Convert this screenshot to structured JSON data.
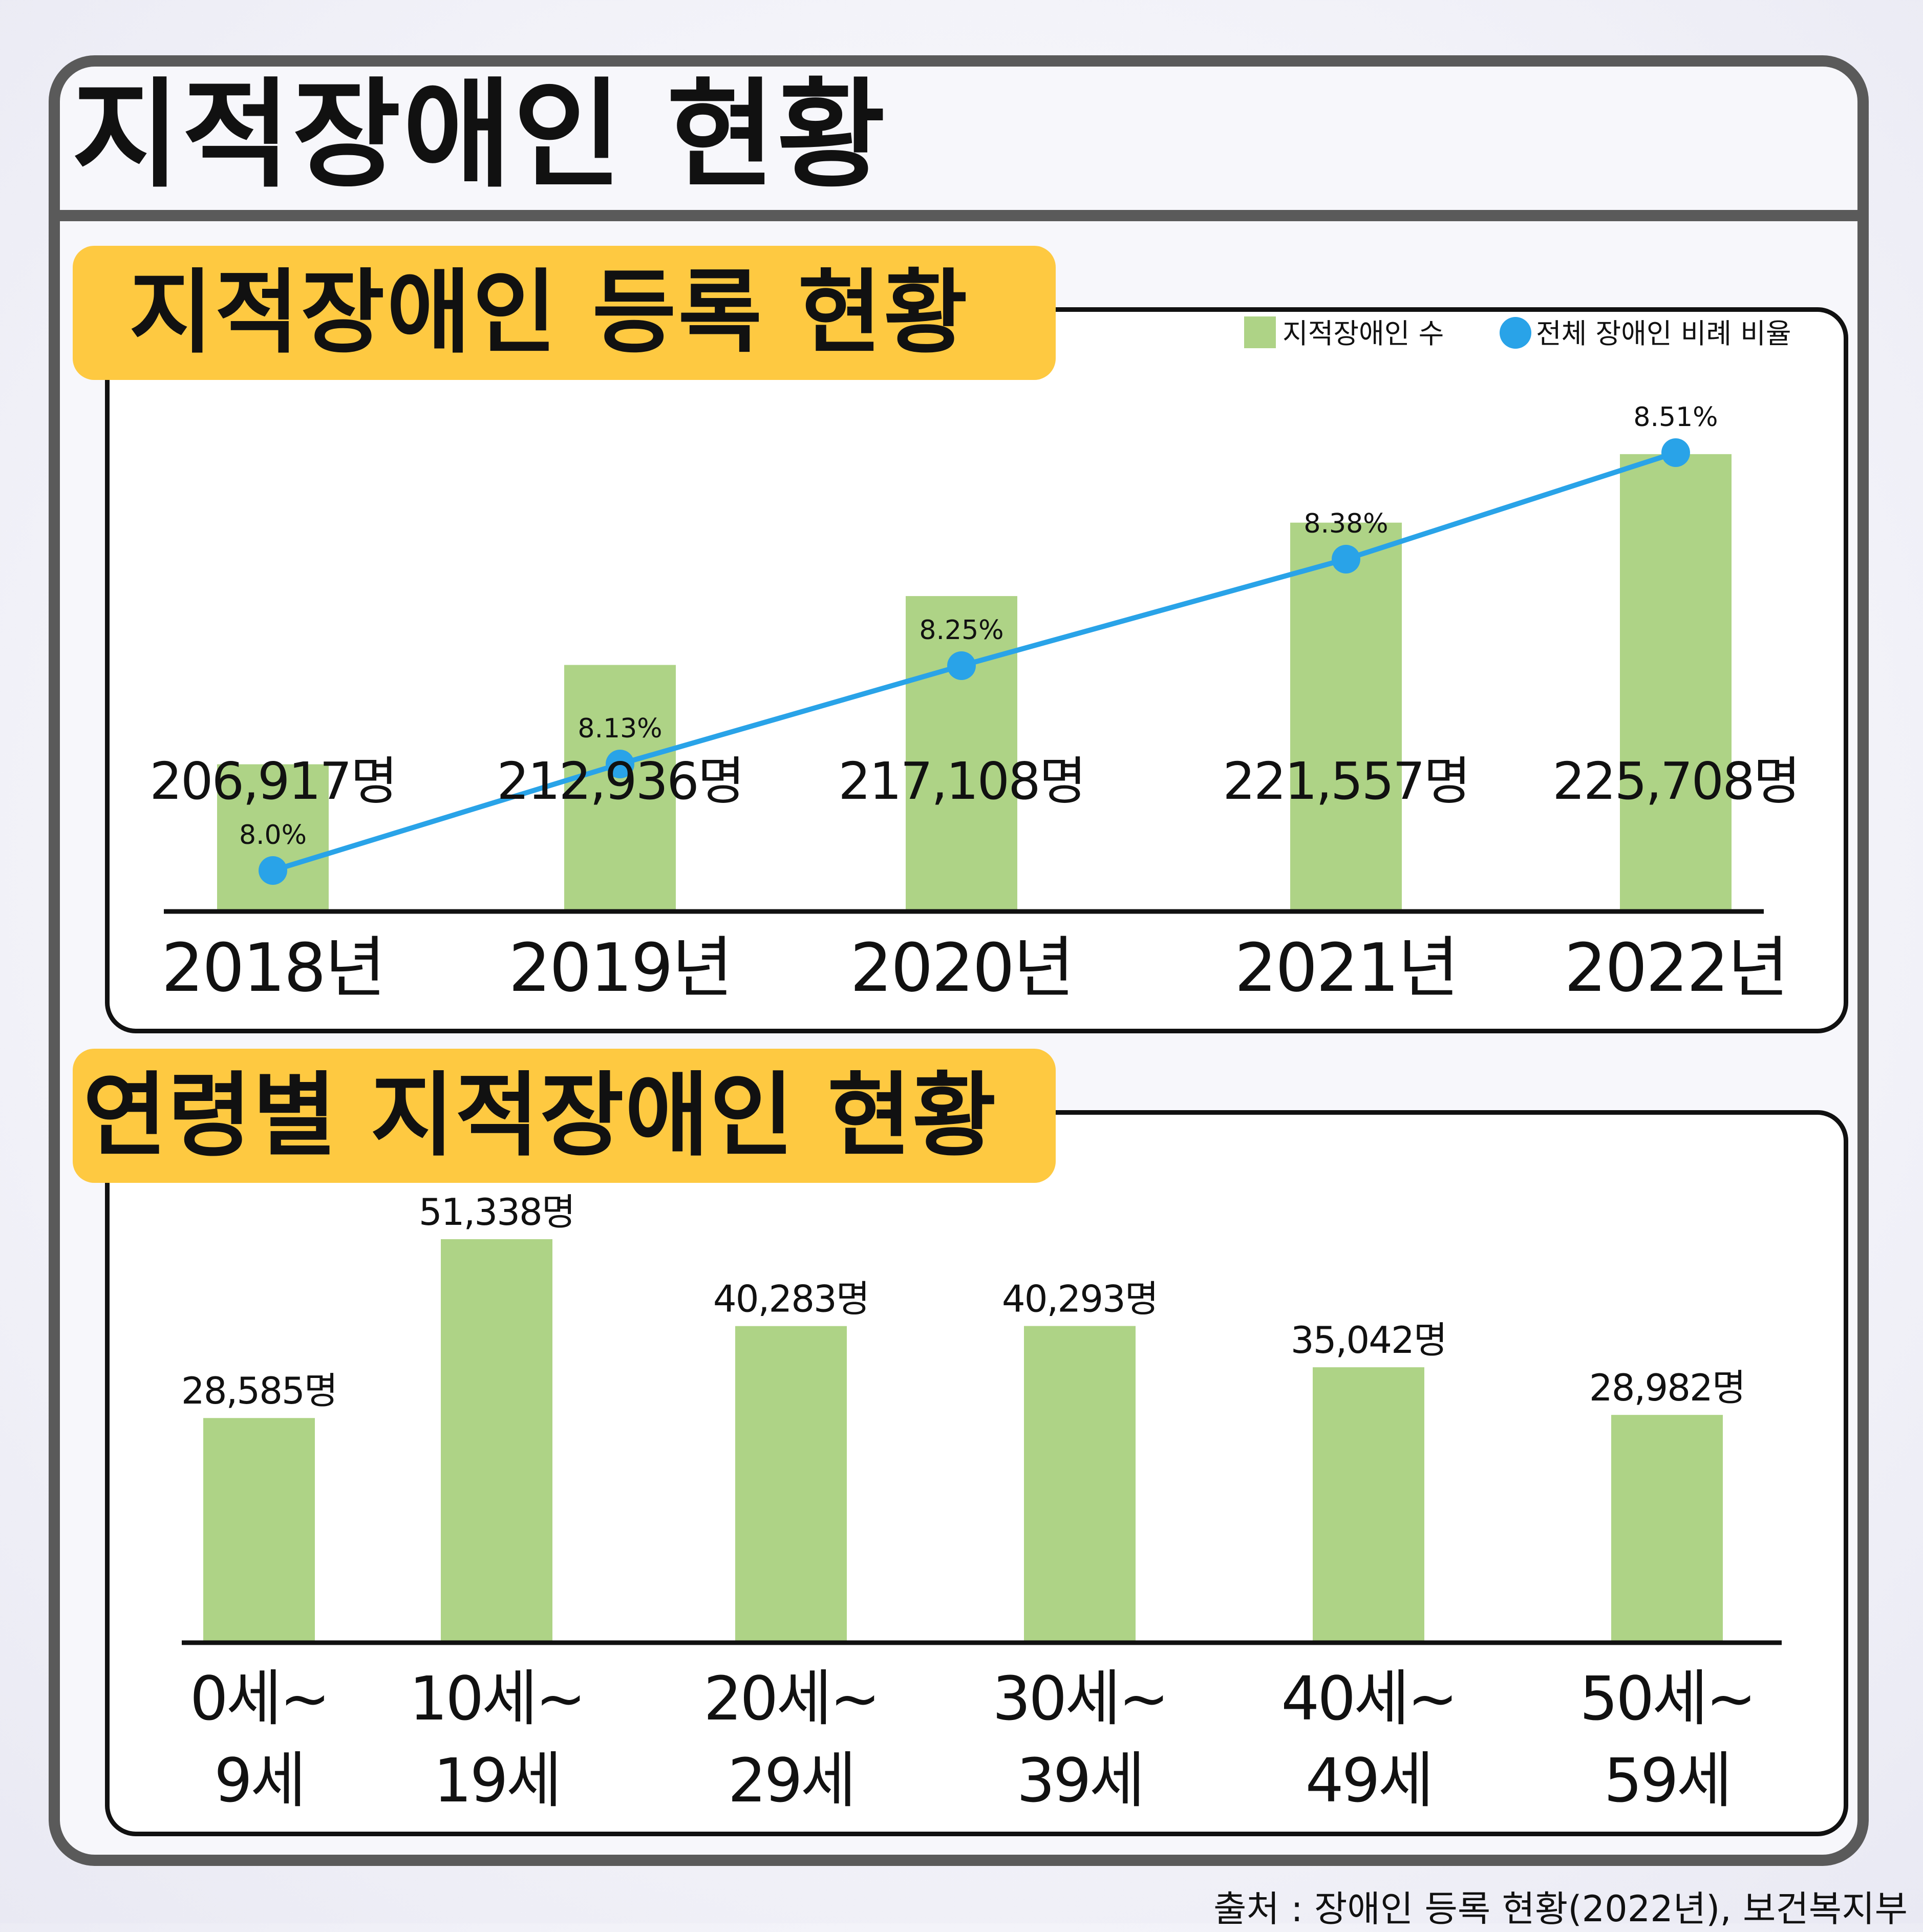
{
  "title": "지적장애인 현황",
  "colors": {
    "bar": "#aed386",
    "line": "#29a3e8",
    "label_bg": "#fec941",
    "frame": "#5a5a5a",
    "axis": "#111111"
  },
  "sections": [
    {
      "label": "지적장애인 등록 현황"
    },
    {
      "label": "연령별 지적장애인 현황"
    }
  ],
  "chart_data": [
    {
      "type": "bar",
      "title": "지적장애인 등록 현황",
      "categories": [
        "2018년",
        "2019년",
        "2020년",
        "2021년",
        "2022년"
      ],
      "legend_position": "top-right",
      "series": [
        {
          "name": "지적장애인 수",
          "kind": "bar",
          "values": [
            206917,
            212936,
            217108,
            221557,
            225708
          ],
          "labels": [
            "206,917명",
            "212,936명",
            "217,108명",
            "221,557명",
            "225,708명"
          ]
        },
        {
          "name": "전체 장애인 비례 비율",
          "kind": "line",
          "values": [
            8.0,
            8.13,
            8.25,
            8.38,
            8.51
          ],
          "labels": [
            "8.0%",
            "8.13%",
            "8.25%",
            "8.38%",
            "8.51%"
          ]
        }
      ]
    },
    {
      "type": "bar",
      "title": "연령별 지적장애인 현황",
      "categories": [
        [
          "0세~",
          "9세"
        ],
        [
          "10세~",
          "19세"
        ],
        [
          "20세~",
          "29세"
        ],
        [
          "30세~",
          "39세"
        ],
        [
          "40세~",
          "49세"
        ],
        [
          "50세~",
          "59세"
        ]
      ],
      "values": [
        28585,
        51338,
        40283,
        40293,
        35042,
        28982
      ],
      "labels": [
        "28,585명",
        "51,338명",
        "40,283명",
        "40,293명",
        "35,042명",
        "28,982명"
      ]
    }
  ],
  "source": "출처 : 장애인 등록 현황(2022년), 보건복지부"
}
